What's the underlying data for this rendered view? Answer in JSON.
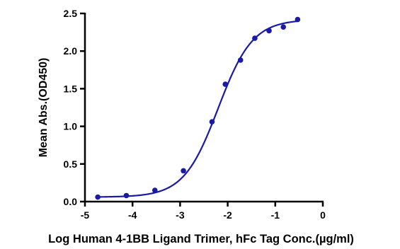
{
  "chart_data": {
    "type": "scatter",
    "xlabel": "Log Human 4-1BB Ligand Trimer, hFc Tag Conc.(µg/ml)",
    "ylabel": "Mean Abs.(OD450)",
    "xlim": [
      -5,
      0
    ],
    "ylim": [
      0.0,
      2.5
    ],
    "x_ticks": [
      -5,
      -4,
      -3,
      -2,
      -1,
      0
    ],
    "x_tick_labels": [
      "-5",
      "-4",
      "-3",
      "-2",
      "-1",
      "0"
    ],
    "y_ticks": [
      0.0,
      0.5,
      1.0,
      1.5,
      2.0,
      2.5
    ],
    "y_tick_labels": [
      "0.0",
      "0.5",
      "1.0",
      "1.5",
      "2.0",
      "2.5"
    ],
    "grid": false,
    "legend": "none",
    "series": [
      {
        "color": "#1a1aa6",
        "marker": "circle",
        "points": [
          {
            "x": -4.73,
            "y": 0.06
          },
          {
            "x": -4.13,
            "y": 0.08
          },
          {
            "x": -3.53,
            "y": 0.15
          },
          {
            "x": -2.93,
            "y": 0.41
          },
          {
            "x": -2.33,
            "y": 1.06
          },
          {
            "x": -2.05,
            "y": 1.56
          },
          {
            "x": -1.73,
            "y": 1.88
          },
          {
            "x": -1.43,
            "y": 2.17
          },
          {
            "x": -1.13,
            "y": 2.27
          },
          {
            "x": -0.83,
            "y": 2.32
          },
          {
            "x": -0.53,
            "y": 2.42
          }
        ],
        "fit": {
          "model": "4PL",
          "bottom": 0.06,
          "top": 2.42,
          "log_ec50": -2.2,
          "hill_slope": 1.2,
          "x_range": [
            -4.73,
            -0.53
          ]
        }
      }
    ]
  }
}
